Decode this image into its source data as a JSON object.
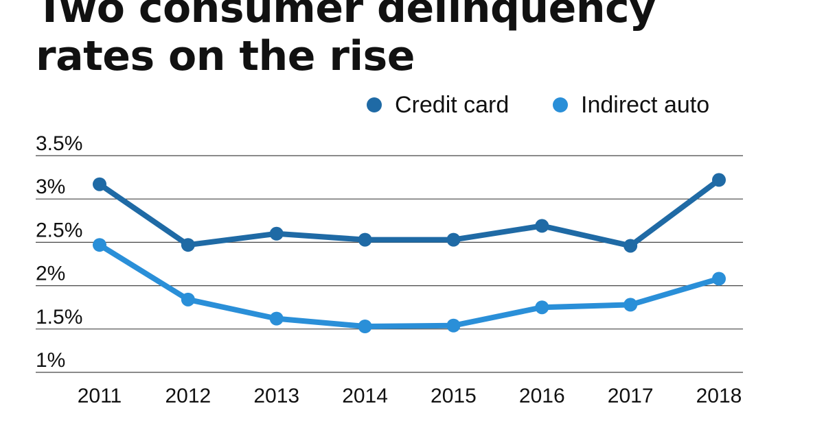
{
  "chart_data": {
    "type": "line",
    "title_lines": [
      "Two consumer delinquency",
      "rates on the rise"
    ],
    "categories": [
      "2011",
      "2012",
      "2013",
      "2014",
      "2015",
      "2016",
      "2017",
      "2018"
    ],
    "series": [
      {
        "name": "Credit card",
        "color": "#1f6aa5",
        "values": [
          3.17,
          2.47,
          2.6,
          2.53,
          2.53,
          2.69,
          2.46,
          3.22
        ]
      },
      {
        "name": "Indirect auto",
        "color": "#2a8fd8",
        "values": [
          2.47,
          1.84,
          1.62,
          1.53,
          1.54,
          1.75,
          1.78,
          2.08
        ]
      }
    ],
    "y_ticks": [
      "3.5%",
      "3%",
      "2.5%",
      "2%",
      "1.5%",
      "1%"
    ],
    "y_tick_values": [
      3.5,
      3.0,
      2.5,
      2.0,
      1.5,
      1.0
    ],
    "ylim": [
      1,
      3.5
    ],
    "xlabel": "",
    "ylabel": "",
    "grid": true,
    "legend_position": "top-right",
    "colors": {
      "grid": "#444444",
      "text": "#111111"
    }
  }
}
